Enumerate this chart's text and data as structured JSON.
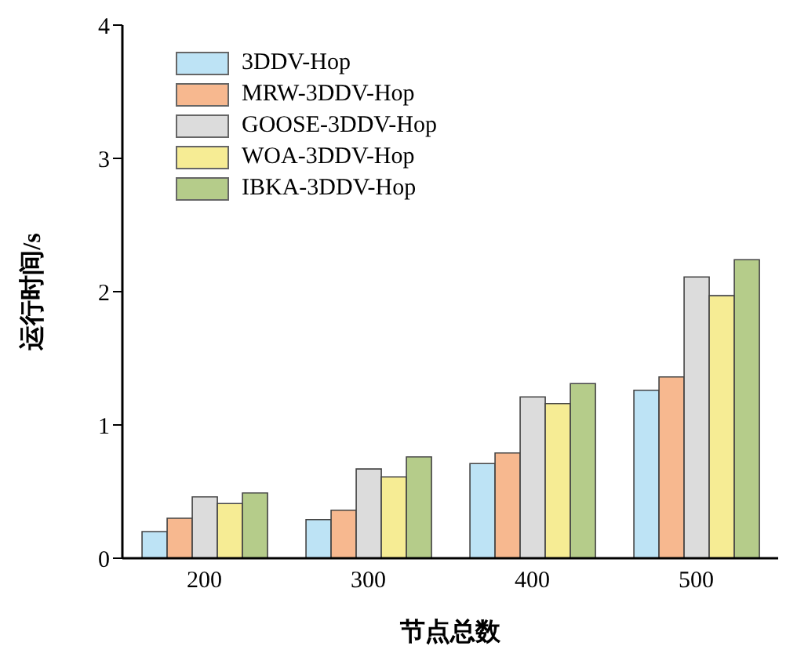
{
  "chart_data": {
    "type": "bar",
    "xlabel": "节点总数",
    "ylabel": "运行时间/s",
    "categories": [
      "200",
      "300",
      "400",
      "500"
    ],
    "series": [
      {
        "name": "3DDV-Hop",
        "color": "#bde3f5",
        "values": [
          0.2,
          0.29,
          0.71,
          1.26
        ]
      },
      {
        "name": "MRW-3DDV-Hop",
        "color": "#f7b88f",
        "values": [
          0.3,
          0.36,
          0.79,
          1.36
        ]
      },
      {
        "name": "GOOSE-3DDV-Hop",
        "color": "#dcdcdc",
        "values": [
          0.46,
          0.67,
          1.21,
          2.11
        ]
      },
      {
        "name": "WOA-3DDV-Hop",
        "color": "#f6ec94",
        "values": [
          0.41,
          0.61,
          1.16,
          1.97
        ]
      },
      {
        "name": "IBKA-3DDV-Hop",
        "color": "#b5cc8a",
        "values": [
          0.49,
          0.76,
          1.31,
          2.24
        ]
      }
    ],
    "ylim": [
      0,
      4
    ],
    "yticks": [
      0,
      1,
      2,
      3,
      4
    ],
    "grid": false,
    "legend": "top left"
  }
}
